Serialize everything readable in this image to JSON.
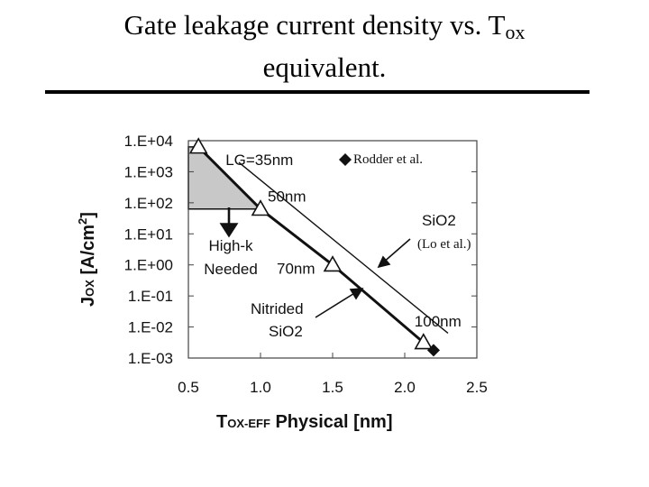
{
  "title": {
    "line1_main": "Gate leakage current density vs. T",
    "line1_sub": "ox",
    "line2": "equivalent."
  },
  "chart_data": {
    "type": "line",
    "xlabel_main": "T",
    "xlabel_sub": "OX-EFF",
    "xlabel_rest": " Physical  [nm]",
    "ylabel_main": "J",
    "ylabel_sub": "OX",
    "ylabel_rest": " [A/cm",
    "ylabel_sup": "2",
    "ylabel_end": "]",
    "xlim": [
      0.5,
      2.5
    ],
    "ylim_log10": [
      -3,
      4
    ],
    "x_ticks": [
      {
        "value": 0.5,
        "label": "0.5"
      },
      {
        "value": 1.0,
        "label": "1.0"
      },
      {
        "value": 1.5,
        "label": "1.5"
      },
      {
        "value": 2.0,
        "label": "2.0"
      },
      {
        "value": 2.5,
        "label": "2.5"
      }
    ],
    "y_ticks": [
      {
        "exp": 4,
        "label": "1.E+04"
      },
      {
        "exp": 3,
        "label": "1.E+03"
      },
      {
        "exp": 2,
        "label": "1.E+02"
      },
      {
        "exp": 1,
        "label": "1.E+01"
      },
      {
        "exp": 0,
        "label": "1.E+00"
      },
      {
        "exp": -1,
        "label": "1.E-01"
      },
      {
        "exp": -2,
        "label": "1.E-02"
      },
      {
        "exp": -3,
        "label": "1.E-03"
      }
    ],
    "series": [
      {
        "style": "thick",
        "x": [
          0.57,
          1.0,
          1.5,
          2.13
        ],
        "log10_y": [
          3.8,
          1.8,
          0.0,
          -2.5
        ]
      },
      {
        "style": "thin",
        "x": [
          0.85,
          2.3
        ],
        "log10_y": [
          3.3,
          -2.2
        ]
      }
    ],
    "triangle_markers": [
      {
        "x": 0.57,
        "log10_y": 3.8,
        "label": "LG=35nm"
      },
      {
        "x": 1.0,
        "log10_y": 1.8,
        "label": "50nm"
      },
      {
        "x": 1.5,
        "log10_y": 0.0,
        "label": "70nm"
      },
      {
        "x": 2.13,
        "log10_y": -2.5,
        "label": "100nm"
      }
    ],
    "diamond_markers": [
      {
        "x": 2.2,
        "log10_y": -2.75,
        "label": "Rodder et al."
      }
    ],
    "shaded_region": {
      "x_left": 0.5,
      "x_right": 1.0,
      "log10_top": 3.8,
      "log10_bottom": 1.8
    },
    "annotations": {
      "high_k": [
        "High-k",
        "Needed"
      ],
      "sio2": "SiO2",
      "lo": "(Lo et al.)",
      "nitrided": [
        "Nitrided",
        "SiO2"
      ]
    }
  }
}
